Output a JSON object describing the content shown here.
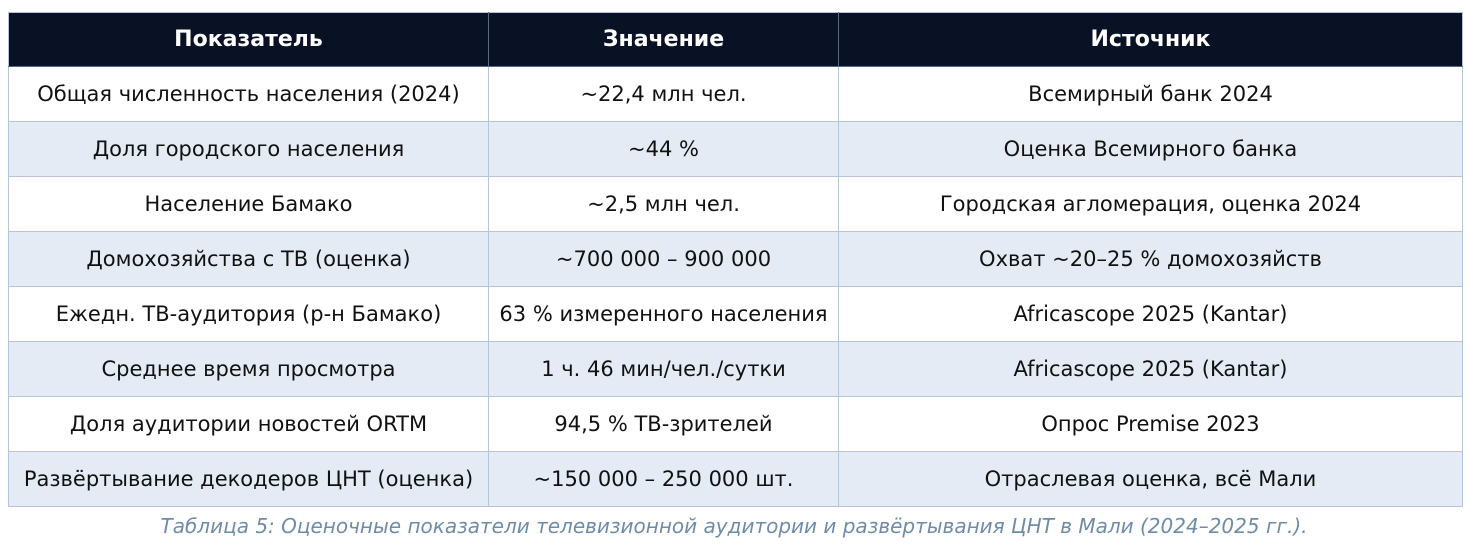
{
  "table": {
    "headers": [
      "Показатель",
      "Значение",
      "Источник"
    ],
    "rows": [
      {
        "indicator": "Общая численность населения (2024)",
        "value": "~22,4 млн чел.",
        "source": "Всемирный банк 2024"
      },
      {
        "indicator": "Доля городского населения",
        "value": "~44 %",
        "source": "Оценка Всемирного банка"
      },
      {
        "indicator": "Население Бамако",
        "value": "~2,5 млн чел.",
        "source": "Городская агломерация, оценка 2024"
      },
      {
        "indicator": "Домохозяйства с ТВ (оценка)",
        "value": "~700 000 – 900 000",
        "source": "Охват ~20–25 % домохозяйств"
      },
      {
        "indicator": "Ежедн. ТВ-аудитория (р-н Бамако)",
        "value": "63 % измеренного населения",
        "source": "Africascope 2025 (Kantar)"
      },
      {
        "indicator": "Среднее время просмотра",
        "value": "1 ч. 46 мин/чел./сутки",
        "source": "Africascope 2025 (Kantar)"
      },
      {
        "indicator": "Доля аудитории новостей ORTM",
        "value": "94,5 % ТВ-зрителей",
        "source": "Опрос Premise 2023"
      },
      {
        "indicator": "Развёртывание декодеров ЦНТ (оценка)",
        "value": "~150 000 – 250 000 шт.",
        "source": "Отраслевая оценка, всё Мали"
      }
    ],
    "caption": "Таблица 5: Оценочные показатели телевизионной аудитории и развёртывания ЦНТ в Мали (2024–2025 гг.)."
  },
  "colors": {
    "header_bg": "#081224",
    "header_text": "#ffffff",
    "row_bg": "#ffffff",
    "row_alt_bg": "#e4ebf4",
    "border": "#b6c4d8",
    "cell_text": "#111111",
    "caption_text": "#6e8ca9"
  }
}
